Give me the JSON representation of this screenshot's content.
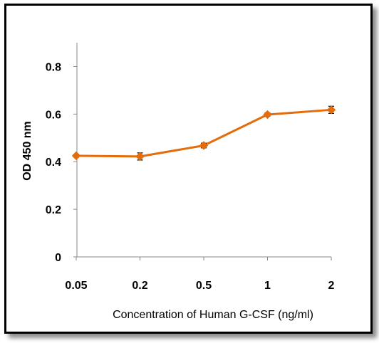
{
  "chart_data": {
    "type": "line",
    "title": "",
    "xlabel": "Concentration of  Human G-CSF (ng/ml)",
    "ylabel": "OD  450 nm",
    "categories": [
      "0.05",
      "0.2",
      "0.5",
      "1",
      "2"
    ],
    "series": [
      {
        "values": [
          0.425,
          0.422,
          0.468,
          0.598,
          0.618
        ],
        "errors": [
          0.006,
          0.015,
          0.01,
          0.007,
          0.015
        ],
        "color": "#E46C0A",
        "marker": "diamond"
      }
    ],
    "ylim": [
      0,
      0.9
    ],
    "yticks": [
      "0",
      "0.2",
      "0.4",
      "0.6",
      "0.8"
    ],
    "grid": false,
    "legend": "none"
  }
}
